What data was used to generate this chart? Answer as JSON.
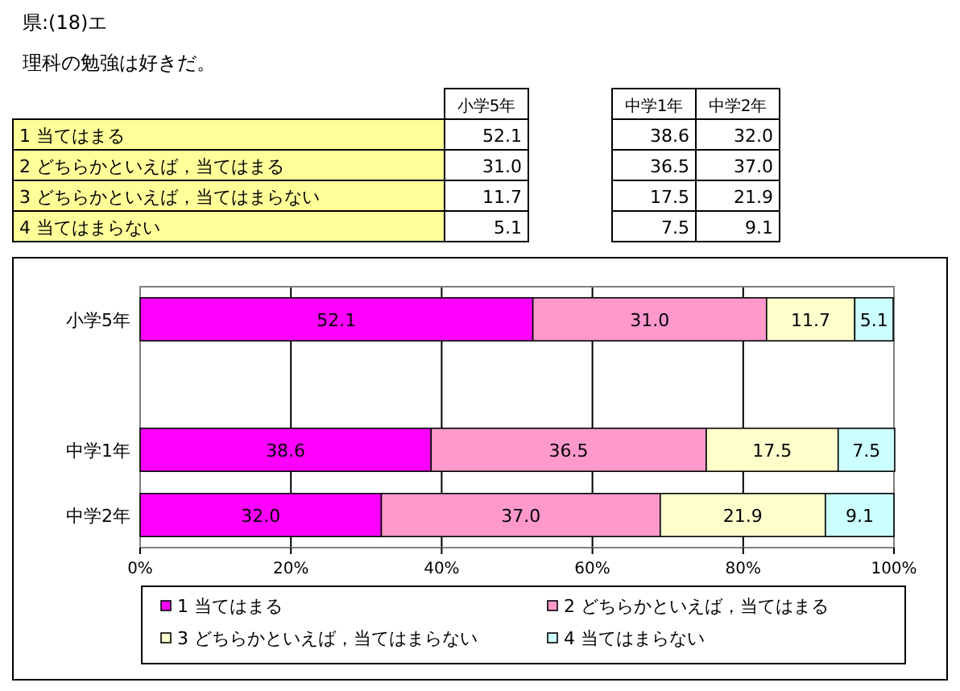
{
  "chart_data": {
    "type": "bar",
    "orientation": "horizontal",
    "stacked": true,
    "title": "県:(18)エ",
    "subtitle": "理科の勉強は好きだ。",
    "categories": [
      "小学5年",
      null,
      "中学1年",
      "中学2年"
    ],
    "series": [
      {
        "name": "1 当てはまる",
        "color": "#ff00ff",
        "values": [
          52.1,
          null,
          38.6,
          32.0
        ],
        "value_labels": [
          "52.1",
          null,
          "38.6",
          "32.0"
        ]
      },
      {
        "name": "2 どちらかといえば，当てはまる",
        "color": "#ff99cc",
        "values": [
          31.0,
          null,
          36.5,
          37.0
        ],
        "value_labels": [
          "31.0",
          null,
          "36.5",
          "37.0"
        ]
      },
      {
        "name": "3 どちらかといえば，当てはまらない",
        "color": "#ffffcc",
        "values": [
          11.7,
          null,
          17.5,
          21.9
        ],
        "value_labels": [
          "11.7",
          null,
          "17.5",
          "21.9"
        ]
      },
      {
        "name": "4 当てはまらない",
        "color": "#ccffff",
        "values": [
          5.1,
          null,
          7.5,
          9.1
        ],
        "value_labels": [
          "5.1",
          null,
          "7.5",
          "9.1"
        ]
      }
    ],
    "xlim": [
      0,
      100
    ],
    "xticks": [
      {
        "value": 0,
        "label": "0%"
      },
      {
        "value": 20,
        "label": "20%"
      },
      {
        "value": 40,
        "label": "40%"
      },
      {
        "value": 60,
        "label": "60%"
      },
      {
        "value": 80,
        "label": "80%"
      },
      {
        "value": 100,
        "label": "100%"
      }
    ],
    "grid": "x",
    "legend": "bottom"
  }
}
